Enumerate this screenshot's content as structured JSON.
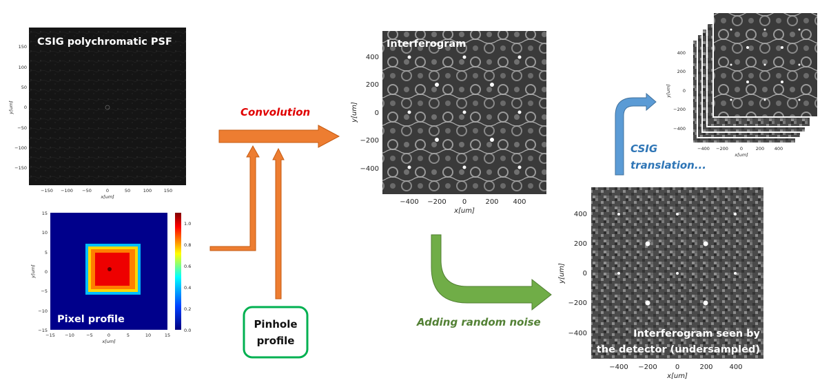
{
  "panels": {
    "psf": {
      "title": "CSIG polychromatic PSF",
      "xticks": [
        "−150",
        "−100",
        "−50",
        "0",
        "50",
        "100",
        "150"
      ],
      "yticks": [
        "150",
        "100",
        "50",
        "0",
        "−50",
        "−100",
        "−150"
      ],
      "xlabel": "x[um]",
      "ylabel": "y[um]"
    },
    "pixel": {
      "title": "Pixel profile",
      "xticks": [
        "−15",
        "−10",
        "−5",
        "0",
        "5",
        "10",
        "15"
      ],
      "yticks": [
        "15",
        "10",
        "5",
        "0",
        "−5",
        "−10",
        "−15"
      ],
      "xlabel": "x[um]",
      "ylabel": "y[um]",
      "cbar_ticks": [
        "1.0",
        "0.8",
        "0.6",
        "0.4",
        "0.2",
        "0.0"
      ]
    },
    "interferogram": {
      "title": "Interferogram",
      "xticks": [
        "−400",
        "−200",
        "0",
        "200",
        "400"
      ],
      "yticks": [
        "400",
        "200",
        "0",
        "−200",
        "−400"
      ],
      "xlabel": "x[um]",
      "ylabel": "y[um]"
    },
    "detector": {
      "title_line1": "Interferogram seen by",
      "title_line2": "the detector (undersampled)",
      "xticks": [
        "−400",
        "−200",
        "0",
        "200",
        "400"
      ],
      "yticks": [
        "400",
        "200",
        "0",
        "−200",
        "−400"
      ],
      "xlabel": "x[um]",
      "ylabel": "y[um]"
    },
    "stack": {
      "xticks": [
        "−400",
        "−200",
        "0",
        "200",
        "400"
      ],
      "yticks": [
        "400",
        "200",
        "0",
        "−200",
        "−400"
      ],
      "xlabel": "x[um]",
      "ylabel": "y[um]"
    }
  },
  "labels": {
    "convolution": "Convolution",
    "pinhole_line1": "Pinhole",
    "pinhole_line2": "profile",
    "noise": "Adding random noise",
    "translation_line1": "CSIG",
    "translation_line2": "translation..."
  },
  "colors": {
    "orange": "#ED7D31",
    "green": "#70AD47",
    "blue": "#5B9BD5",
    "red_text": "#E00000",
    "green_text": "#538135",
    "blue_text": "#2E75B6",
    "pinhole_border": "#00B050"
  }
}
